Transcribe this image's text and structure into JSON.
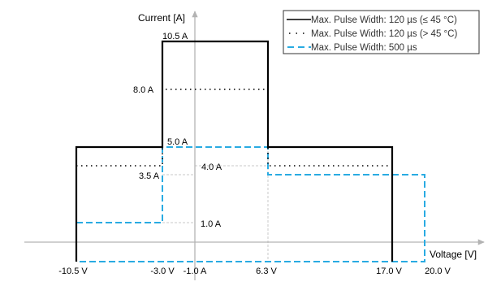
{
  "chart_data": {
    "type": "line",
    "x_axis": {
      "label": "Voltage [V]"
    },
    "y_axis": {
      "label": "Current [A]"
    },
    "grid": false,
    "legend_position": "top-right",
    "colors": {
      "solid": "#000000",
      "dotted": "#000000",
      "dashed": "#29abe2",
      "helper": "#c8c8c8",
      "axis": "#b3b3b3"
    },
    "series": [
      {
        "name": "Max. Pulse Width: 120 µs (≤ 45 °C)",
        "style": "solid",
        "points": [
          [
            -10.5,
            -1.0
          ],
          [
            -10.5,
            5.0
          ],
          [
            -3.0,
            5.0
          ],
          [
            -3.0,
            10.5
          ],
          [
            6.3,
            10.5
          ],
          [
            6.3,
            5.0
          ],
          [
            17.0,
            5.0
          ],
          [
            17.0,
            -1.0
          ]
        ]
      },
      {
        "name": "Max. Pulse Width: 120 µs (> 45 °C)",
        "style": "dotted",
        "points": [
          [
            -10.5,
            4.0
          ],
          [
            -3.0,
            4.0
          ],
          [
            -3.0,
            8.0
          ],
          [
            6.3,
            8.0
          ],
          [
            6.3,
            4.0
          ],
          [
            17.0,
            4.0
          ]
        ]
      },
      {
        "name": "Max. Pulse Width: 500 µs",
        "style": "dashed",
        "points": [
          [
            -10.5,
            -1.0
          ],
          [
            -10.5,
            1.0
          ],
          [
            -3.0,
            1.0
          ],
          [
            -3.0,
            5.0
          ],
          [
            6.3,
            5.0
          ],
          [
            6.3,
            3.5
          ],
          [
            20.0,
            3.5
          ],
          [
            20.0,
            -1.0
          ],
          [
            -10.5,
            -1.0
          ]
        ]
      }
    ],
    "annotations": [
      {
        "text": "10.5 A",
        "x": -3.0,
        "y": 10.5
      },
      {
        "text": "8.0 A",
        "x": -3.0,
        "y": 8.0
      },
      {
        "text": "5.0 A",
        "x": -3.0,
        "y": 5.0
      },
      {
        "text": "4.0 A",
        "x": 0.0,
        "y": 4.0
      },
      {
        "text": "3.5 A",
        "x": -3.0,
        "y": 3.5
      },
      {
        "text": "1.0 A",
        "x": 0.0,
        "y": 1.0
      },
      {
        "text": "-3.0 V",
        "x": -3.0,
        "y": -1.0
      },
      {
        "text": "6.3 V",
        "x": 6.3,
        "y": -1.0
      },
      {
        "text": "-10.5 V",
        "x": -10.5,
        "y": -1.0
      },
      {
        "text": "-1.0 A",
        "x": 0.0,
        "y": -1.0
      },
      {
        "text": "17.0 V",
        "x": 17.0,
        "y": -1.0
      },
      {
        "text": "20.0 V",
        "x": 20.0,
        "y": -1.0
      }
    ]
  }
}
